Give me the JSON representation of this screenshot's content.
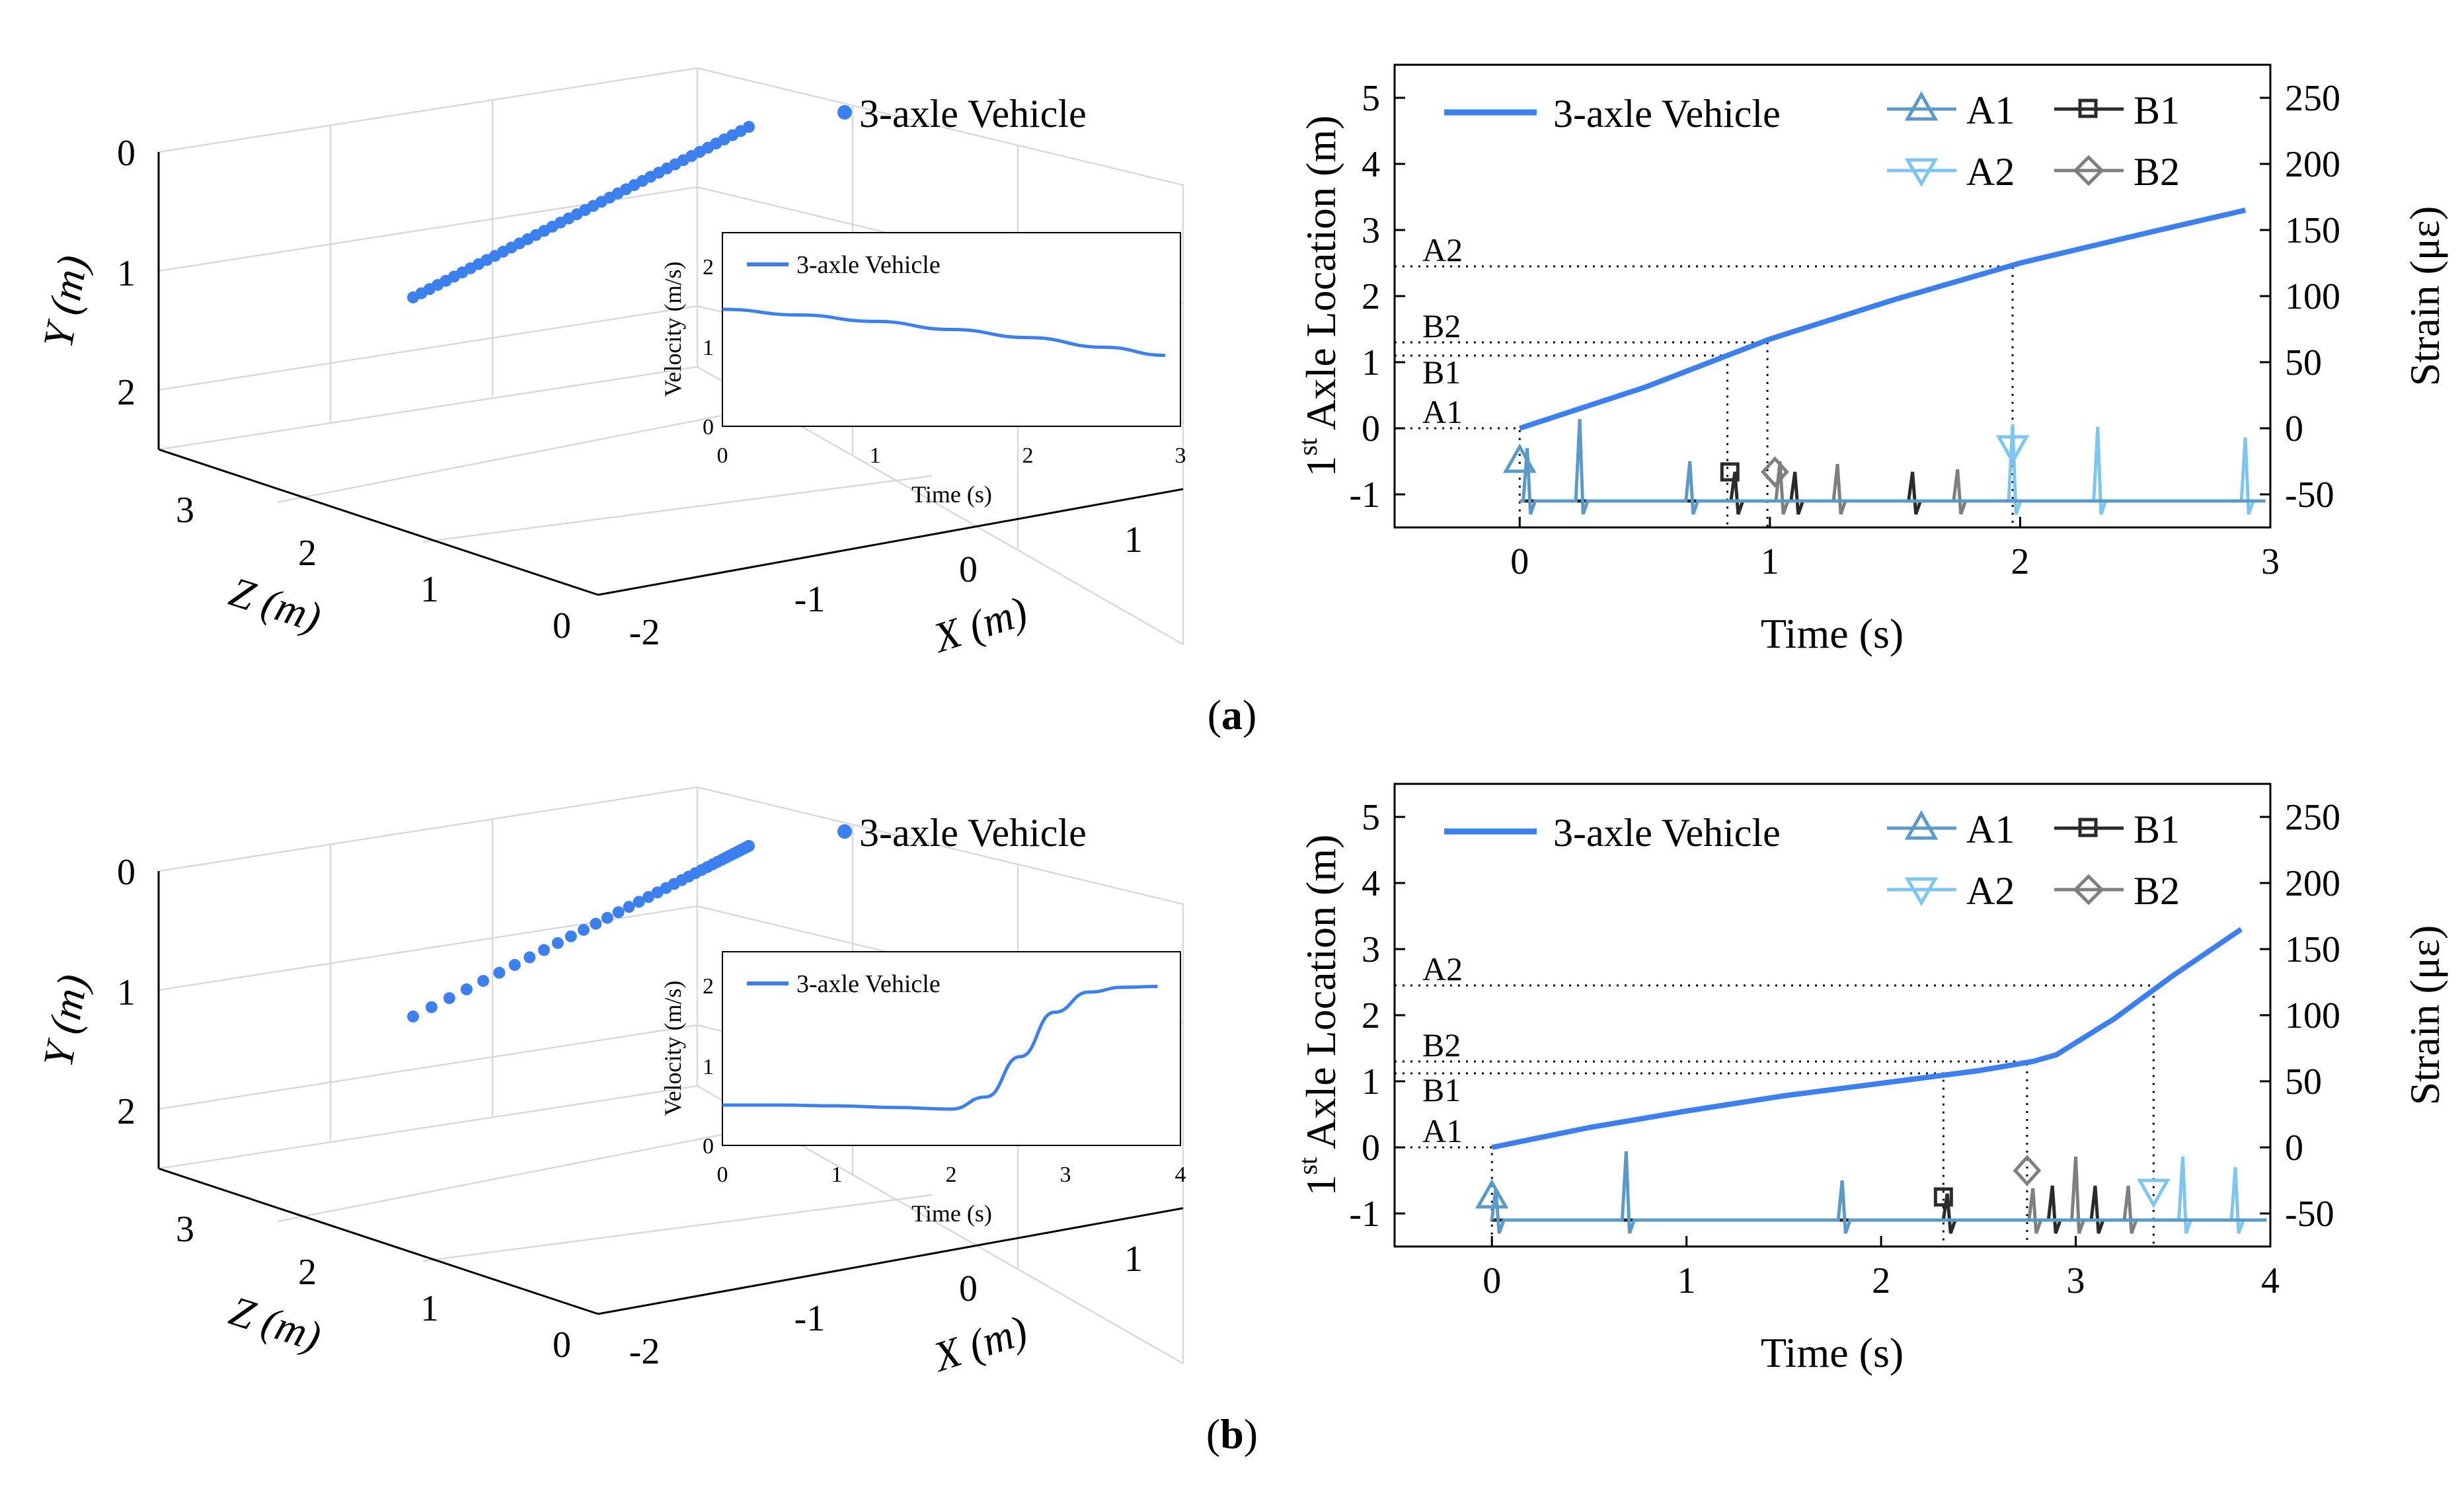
{
  "colors": {
    "vehicle": "#3c7fee",
    "A1": "#5b9ac8",
    "A2": "#7cc6f0",
    "B1": "#2b2b2b",
    "B2": "#7f7f7f",
    "grid": "#d9d9d9"
  },
  "panels": [
    {
      "caption": "a",
      "trajectory3d": {
        "legend": "3-axle Vehicle",
        "y_label": "Y (m)",
        "z_label": "Z (m)",
        "x_label": "X (m)",
        "y_ticks": [
          "0",
          "1",
          "2"
        ],
        "z_ticks": [
          "3",
          "2",
          "1",
          "0"
        ],
        "x_ticks": [
          "-2",
          "-1",
          "0",
          "1"
        ],
        "points": 42,
        "spacing": "uniform",
        "inset": {
          "legend": "3-axle Vehicle",
          "xlabel": "Time (s)",
          "ylabel": "Velocity (m/s)",
          "xticks": [
            "0",
            "1",
            "2",
            "3"
          ],
          "yticks": [
            "0",
            "1",
            "2"
          ]
        }
      },
      "timeline": {
        "xlabel": "Time (s)",
        "ylabel_base": "Axle Location (m)",
        "ylabel_ordinal": "1",
        "ylabel_sup": "st",
        "y2label": "Strain (με)",
        "xticks": [
          "0",
          "1",
          "2",
          "3"
        ],
        "yticks": [
          "-1",
          "0",
          "1",
          "2",
          "3",
          "4",
          "5"
        ],
        "y2ticks": [
          "-50",
          "0",
          "50",
          "100",
          "150",
          "200",
          "250"
        ],
        "legend": [
          "3-axle Vehicle",
          "A1",
          "B1",
          "A2",
          "B2"
        ],
        "guide_labels": [
          "A2",
          "B2",
          "B1",
          "A1"
        ]
      }
    },
    {
      "caption": "b",
      "trajectory3d": {
        "legend": "3-axle Vehicle",
        "y_label": "Y (m)",
        "z_label": "Z (m)",
        "x_label": "X (m)",
        "y_ticks": [
          "0",
          "1",
          "2"
        ],
        "z_ticks": [
          "3",
          "2",
          "1",
          "0"
        ],
        "x_ticks": [
          "-2",
          "-1",
          "0",
          "1"
        ],
        "points": 44,
        "spacing": "accelerating",
        "inset": {
          "legend": "3-axle Vehicle",
          "xlabel": "Time (s)",
          "ylabel": "Velocity (m/s)",
          "xticks": [
            "0",
            "1",
            "2",
            "3",
            "4"
          ],
          "yticks": [
            "0",
            "1",
            "2"
          ]
        }
      },
      "timeline": {
        "xlabel": "Time (s)",
        "ylabel_base": "Axle Location (m)",
        "ylabel_ordinal": "1",
        "ylabel_sup": "st",
        "y2label": "Strain (με)",
        "xticks": [
          "0",
          "1",
          "2",
          "3",
          "4"
        ],
        "yticks": [
          "-1",
          "0",
          "1",
          "2",
          "3",
          "4",
          "5"
        ],
        "y2ticks": [
          "-50",
          "0",
          "50",
          "100",
          "150",
          "200",
          "250"
        ],
        "legend": [
          "3-axle Vehicle",
          "A1",
          "B1",
          "A2",
          "B2"
        ],
        "guide_labels": [
          "A2",
          "B2",
          "B1",
          "A1"
        ]
      }
    }
  ],
  "chart_data": [
    {
      "id": "a-inset",
      "type": "line",
      "title": "",
      "xlabel": "Time (s)",
      "ylabel": "Velocity (m/s)",
      "xlim": [
        0,
        3
      ],
      "ylim": [
        0,
        2.4
      ],
      "series": [
        {
          "name": "3-axle Vehicle",
          "x": [
            0,
            0.5,
            1,
            1.5,
            2,
            2.5,
            2.9
          ],
          "y": [
            1.45,
            1.38,
            1.3,
            1.2,
            1.1,
            0.98,
            0.88
          ]
        }
      ]
    },
    {
      "id": "a-timeline",
      "type": "line",
      "xlabel": "Time (s)",
      "ylabel": "1st Axle Location (m)",
      "y2label": "Strain (με)",
      "xlim": [
        -0.5,
        3
      ],
      "ylim": [
        -1.5,
        5.5
      ],
      "y2lim": [
        -75,
        275
      ],
      "vehicle": {
        "x": [
          0,
          0.5,
          1,
          1.5,
          2,
          2.5,
          2.9
        ],
        "y": [
          0,
          0.62,
          1.35,
          1.95,
          2.5,
          2.95,
          3.3
        ]
      },
      "sensor_positions": {
        "A1": 0,
        "B1": 1.1,
        "B2": 1.3,
        "A2": 2.45
      },
      "sensor_times": {
        "A1": 0,
        "B1": 0.83,
        "B2": 0.99,
        "A2": 1.97
      },
      "strain_baseline": -55,
      "strain_peaks": [
        {
          "sensor": "A1",
          "t": 0.03,
          "h": 40
        },
        {
          "sensor": "A1",
          "t": 0.24,
          "h": 62
        },
        {
          "sensor": "A1",
          "t": 0.68,
          "h": 30
        },
        {
          "sensor": "B1",
          "t": 0.86,
          "h": 22
        },
        {
          "sensor": "B1",
          "t": 1.1,
          "h": 22
        },
        {
          "sensor": "B1",
          "t": 1.57,
          "h": 22
        },
        {
          "sensor": "B2",
          "t": 1.04,
          "h": 30
        },
        {
          "sensor": "B2",
          "t": 1.27,
          "h": 28
        },
        {
          "sensor": "B2",
          "t": 1.75,
          "h": 24
        },
        {
          "sensor": "A2",
          "t": 1.97,
          "h": 58
        },
        {
          "sensor": "A2",
          "t": 2.31,
          "h": 56
        },
        {
          "sensor": "A2",
          "t": 2.9,
          "h": 48
        }
      ],
      "markers": {
        "A1": {
          "t": 0,
          "v": -0.5
        },
        "B1": {
          "t": 0.84,
          "v": -0.66
        },
        "B2": {
          "t": 1.02,
          "v": -0.66
        },
        "A2": {
          "t": 1.97,
          "v": -0.28
        }
      }
    },
    {
      "id": "b-inset",
      "type": "line",
      "xlabel": "Time (s)",
      "ylabel": "Velocity (m/s)",
      "xlim": [
        0,
        4
      ],
      "ylim": [
        0,
        2.4
      ],
      "series": [
        {
          "name": "3-axle Vehicle",
          "x": [
            0,
            0.5,
            1,
            1.5,
            2,
            2.3,
            2.6,
            2.9,
            3.2,
            3.5,
            3.8
          ],
          "y": [
            0.5,
            0.5,
            0.49,
            0.47,
            0.45,
            0.6,
            1.1,
            1.65,
            1.9,
            1.96,
            1.97
          ]
        }
      ]
    },
    {
      "id": "b-timeline",
      "type": "line",
      "xlabel": "Time (s)",
      "ylabel": "1st Axle Location (m)",
      "y2label": "Strain (με)",
      "xlim": [
        -0.5,
        4
      ],
      "ylim": [
        -1.5,
        5.5
      ],
      "y2lim": [
        -75,
        275
      ],
      "vehicle": {
        "x": [
          0,
          0.5,
          1,
          1.5,
          2,
          2.5,
          2.78,
          2.9,
          3.2,
          3.5,
          3.85
        ],
        "y": [
          0,
          0.3,
          0.55,
          0.78,
          0.97,
          1.16,
          1.3,
          1.4,
          1.95,
          2.6,
          3.3
        ]
      },
      "sensor_positions": {
        "A1": 0,
        "B1": 1.12,
        "B2": 1.3,
        "A2": 2.45
      },
      "sensor_times": {
        "A1": 0,
        "B1": 2.32,
        "B2": 2.75,
        "A2": 3.4
      },
      "strain_baseline": -55,
      "strain_peaks": [
        {
          "sensor": "A1",
          "t": 0.02,
          "h": 24
        },
        {
          "sensor": "A1",
          "t": 0.69,
          "h": 52
        },
        {
          "sensor": "A1",
          "t": 1.8,
          "h": 30
        },
        {
          "sensor": "B1",
          "t": 2.34,
          "h": 20
        },
        {
          "sensor": "B1",
          "t": 2.88,
          "h": 26
        },
        {
          "sensor": "B1",
          "t": 3.1,
          "h": 26
        },
        {
          "sensor": "B2",
          "t": 2.78,
          "h": 24
        },
        {
          "sensor": "B2",
          "t": 3.0,
          "h": 48
        },
        {
          "sensor": "B2",
          "t": 3.27,
          "h": 26
        },
        {
          "sensor": "A2",
          "t": 3.55,
          "h": 48
        },
        {
          "sensor": "A2",
          "t": 3.82,
          "h": 40
        }
      ],
      "markers": {
        "A1": {
          "t": 0,
          "v": -0.75
        },
        "B1": {
          "t": 2.32,
          "v": -0.75
        },
        "B2": {
          "t": 2.75,
          "v": -0.35
        },
        "A2": {
          "t": 3.4,
          "v": -0.65
        }
      }
    }
  ]
}
